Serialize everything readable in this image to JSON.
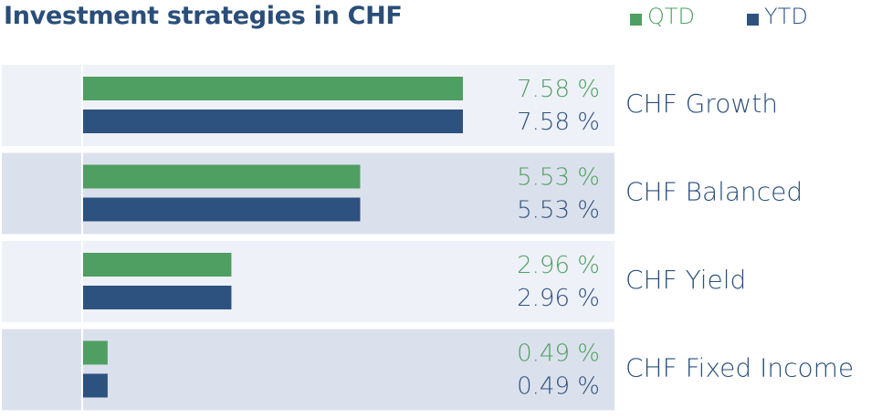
{
  "title": "Investment strategies in CHF",
  "legend": {
    "qtd": "QTD",
    "ytd": "YTD"
  },
  "colors": {
    "qtd": "#4f9f62",
    "ytd": "#2d5280",
    "title": "#2a4e79"
  },
  "chart_data": {
    "type": "bar",
    "orientation": "horizontal",
    "title": "Investment strategies in CHF",
    "categories": [
      "CHF Growth",
      "CHF Balanced",
      "CHF Yield",
      "CHF Fixed Income"
    ],
    "series": [
      {
        "name": "QTD",
        "values": [
          7.58,
          5.53,
          2.96,
          0.49
        ],
        "labels": [
          "7.58 %",
          "5.53 %",
          "2.96 %",
          "0.49 %"
        ]
      },
      {
        "name": "YTD",
        "values": [
          7.58,
          5.53,
          2.96,
          0.49
        ],
        "labels": [
          "7.58 %",
          "5.53 %",
          "2.96 %",
          "0.49 %"
        ]
      }
    ],
    "legend_position": "top-right",
    "grid": false
  }
}
